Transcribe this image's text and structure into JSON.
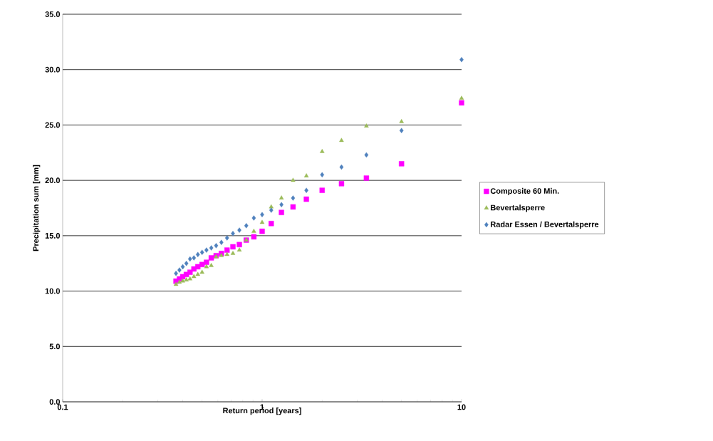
{
  "chart_data": {
    "type": "scatter",
    "xlabel": "Return period [years]",
    "ylabel": "Precipitation sum [mm]",
    "x": [
      10,
      5,
      3.333,
      2.5,
      2,
      1.667,
      1.429,
      1.25,
      1.111,
      1,
      0.909,
      0.833,
      0.769,
      0.714,
      0.667,
      0.625,
      0.588,
      0.556,
      0.526,
      0.5,
      0.476,
      0.455,
      0.435,
      0.417,
      0.4,
      0.385,
      0.37
    ],
    "series": [
      {
        "name": "Composite 60 Min.",
        "color": "#ff00ff",
        "marker": "square",
        "values": [
          27.0,
          21.5,
          20.2,
          19.7,
          19.1,
          18.3,
          17.6,
          17.1,
          16.1,
          15.4,
          14.9,
          14.6,
          14.2,
          14.0,
          13.7,
          13.4,
          13.2,
          13.0,
          12.6,
          12.4,
          12.2,
          12.0,
          11.7,
          11.5,
          11.3,
          11.1,
          10.9
        ]
      },
      {
        "name": "Bevertalsperre",
        "color": "#9bbb59",
        "marker": "triangle",
        "values": [
          27.4,
          25.3,
          24.9,
          23.6,
          22.6,
          20.4,
          20.0,
          18.4,
          17.6,
          16.2,
          15.4,
          14.6,
          13.7,
          13.4,
          13.3,
          13.2,
          13.1,
          12.3,
          12.2,
          11.7,
          11.5,
          11.3,
          11.1,
          11.0,
          10.9,
          10.8,
          10.6
        ]
      },
      {
        "name": "Radar Essen / Bevertalsperre",
        "color": "#4f81bd",
        "marker": "diamond",
        "values": [
          30.9,
          24.5,
          22.3,
          21.2,
          20.5,
          19.1,
          18.4,
          17.8,
          17.3,
          16.9,
          16.6,
          15.9,
          15.5,
          15.2,
          14.8,
          14.4,
          14.1,
          13.9,
          13.7,
          13.5,
          13.3,
          13.0,
          12.9,
          12.5,
          12.2,
          11.9,
          11.6
        ]
      }
    ],
    "log": "x",
    "xlim": [
      0.1,
      10
    ],
    "xticks": [
      0.1,
      1,
      10
    ],
    "ylim": [
      0,
      35
    ],
    "yticks": [
      {
        "value": 0,
        "label": "0.0"
      },
      {
        "value": 5,
        "label": "5.0"
      },
      {
        "value": 10,
        "label": "10.0"
      },
      {
        "value": 15,
        "label": "15.0"
      },
      {
        "value": 20,
        "label": "20.0"
      },
      {
        "value": 25,
        "label": "25.0"
      },
      {
        "value": 30,
        "label": "30.0"
      },
      {
        "value": 35,
        "label": "35.0"
      }
    ],
    "grid": "y",
    "legend": "right"
  }
}
